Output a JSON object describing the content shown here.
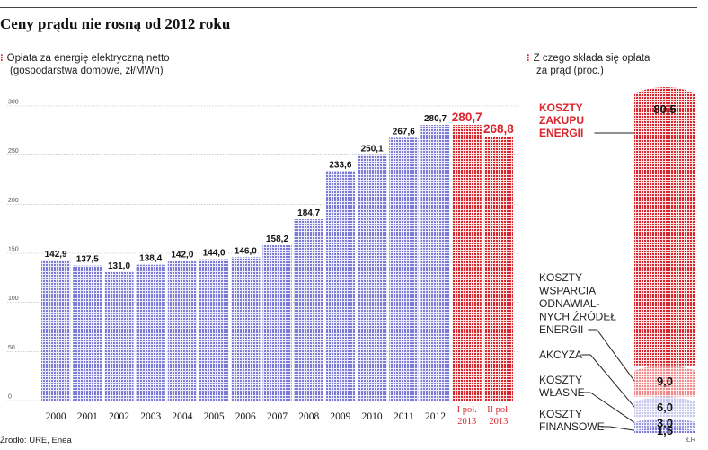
{
  "header": {
    "title": "Ceny prądu nie rosną od 2012 roku"
  },
  "left_chart": {
    "subtitle_line1": "Opłata za energię elektryczną netto",
    "subtitle_line2": "(gospodarstwa domowe, zł/MWh)"
  },
  "right_chart": {
    "subtitle_line1": "Z czego składa się opłata",
    "subtitle_line2": "za prąd (proc.)"
  },
  "footer": {
    "source": "Źrodło: URE, Enea",
    "credit": "ŁR"
  },
  "chart_data": [
    {
      "type": "bar",
      "title": "Opłata za energię elektryczną netto (gospodarstwa domowe, zł/MWh)",
      "categories": [
        "2000",
        "2001",
        "2002",
        "2003",
        "2004",
        "2005",
        "2006",
        "2007",
        "2008",
        "2009",
        "2010",
        "2011",
        "2012",
        "I poł.\n2013",
        "II poł.\n2013"
      ],
      "values": [
        142.9,
        137.5,
        131.0,
        138.4,
        142.0,
        144.0,
        146.0,
        158.2,
        184.7,
        233.6,
        250.1,
        267.6,
        280.7,
        280.7,
        268.8
      ],
      "value_labels": [
        "142,9",
        "137,5",
        "131,0",
        "138,4",
        "142,0",
        "144,0",
        "146,0",
        "158,2",
        "184,7",
        "233,6",
        "250,1",
        "267,6",
        "280,7",
        "280,7",
        "268,8"
      ],
      "highlighted": [
        false,
        false,
        false,
        false,
        false,
        false,
        false,
        false,
        false,
        false,
        false,
        false,
        false,
        true,
        true
      ],
      "ylim": [
        0,
        300
      ],
      "yticks": [
        0,
        50,
        100,
        150,
        200,
        250,
        300
      ],
      "grid": true,
      "colors": {
        "bar": "#7b7bd6",
        "highlight": "#d9262c",
        "grid": "#b0b0b0"
      }
    },
    {
      "type": "bar",
      "stacked": true,
      "title": "Z czego składa się opłata za prąd (proc.)",
      "components": [
        {
          "label": "KOSZTY ZAKUPU ENERGII",
          "value": 80.5,
          "value_label": "80,5",
          "color": "#d9262c"
        },
        {
          "label": "KOSZTY WSPARCIA ODNAWIAL-NYCH ŹRÓDEŁ ENERGII",
          "value": 9.0,
          "value_label": "9,0",
          "color": "#f08a8a"
        },
        {
          "label": "AKCYZA",
          "value": 6.0,
          "value_label": "6,0",
          "color": "#c8c8ee"
        },
        {
          "label": "KOSZTY WŁASNE",
          "value": 3.0,
          "value_label": "3,0",
          "color": "#9a9ae0"
        },
        {
          "label": "KOSZTY FINANSOWE",
          "value": 1.5,
          "value_label": "1,5",
          "color": "#7b7bd6"
        }
      ]
    }
  ]
}
